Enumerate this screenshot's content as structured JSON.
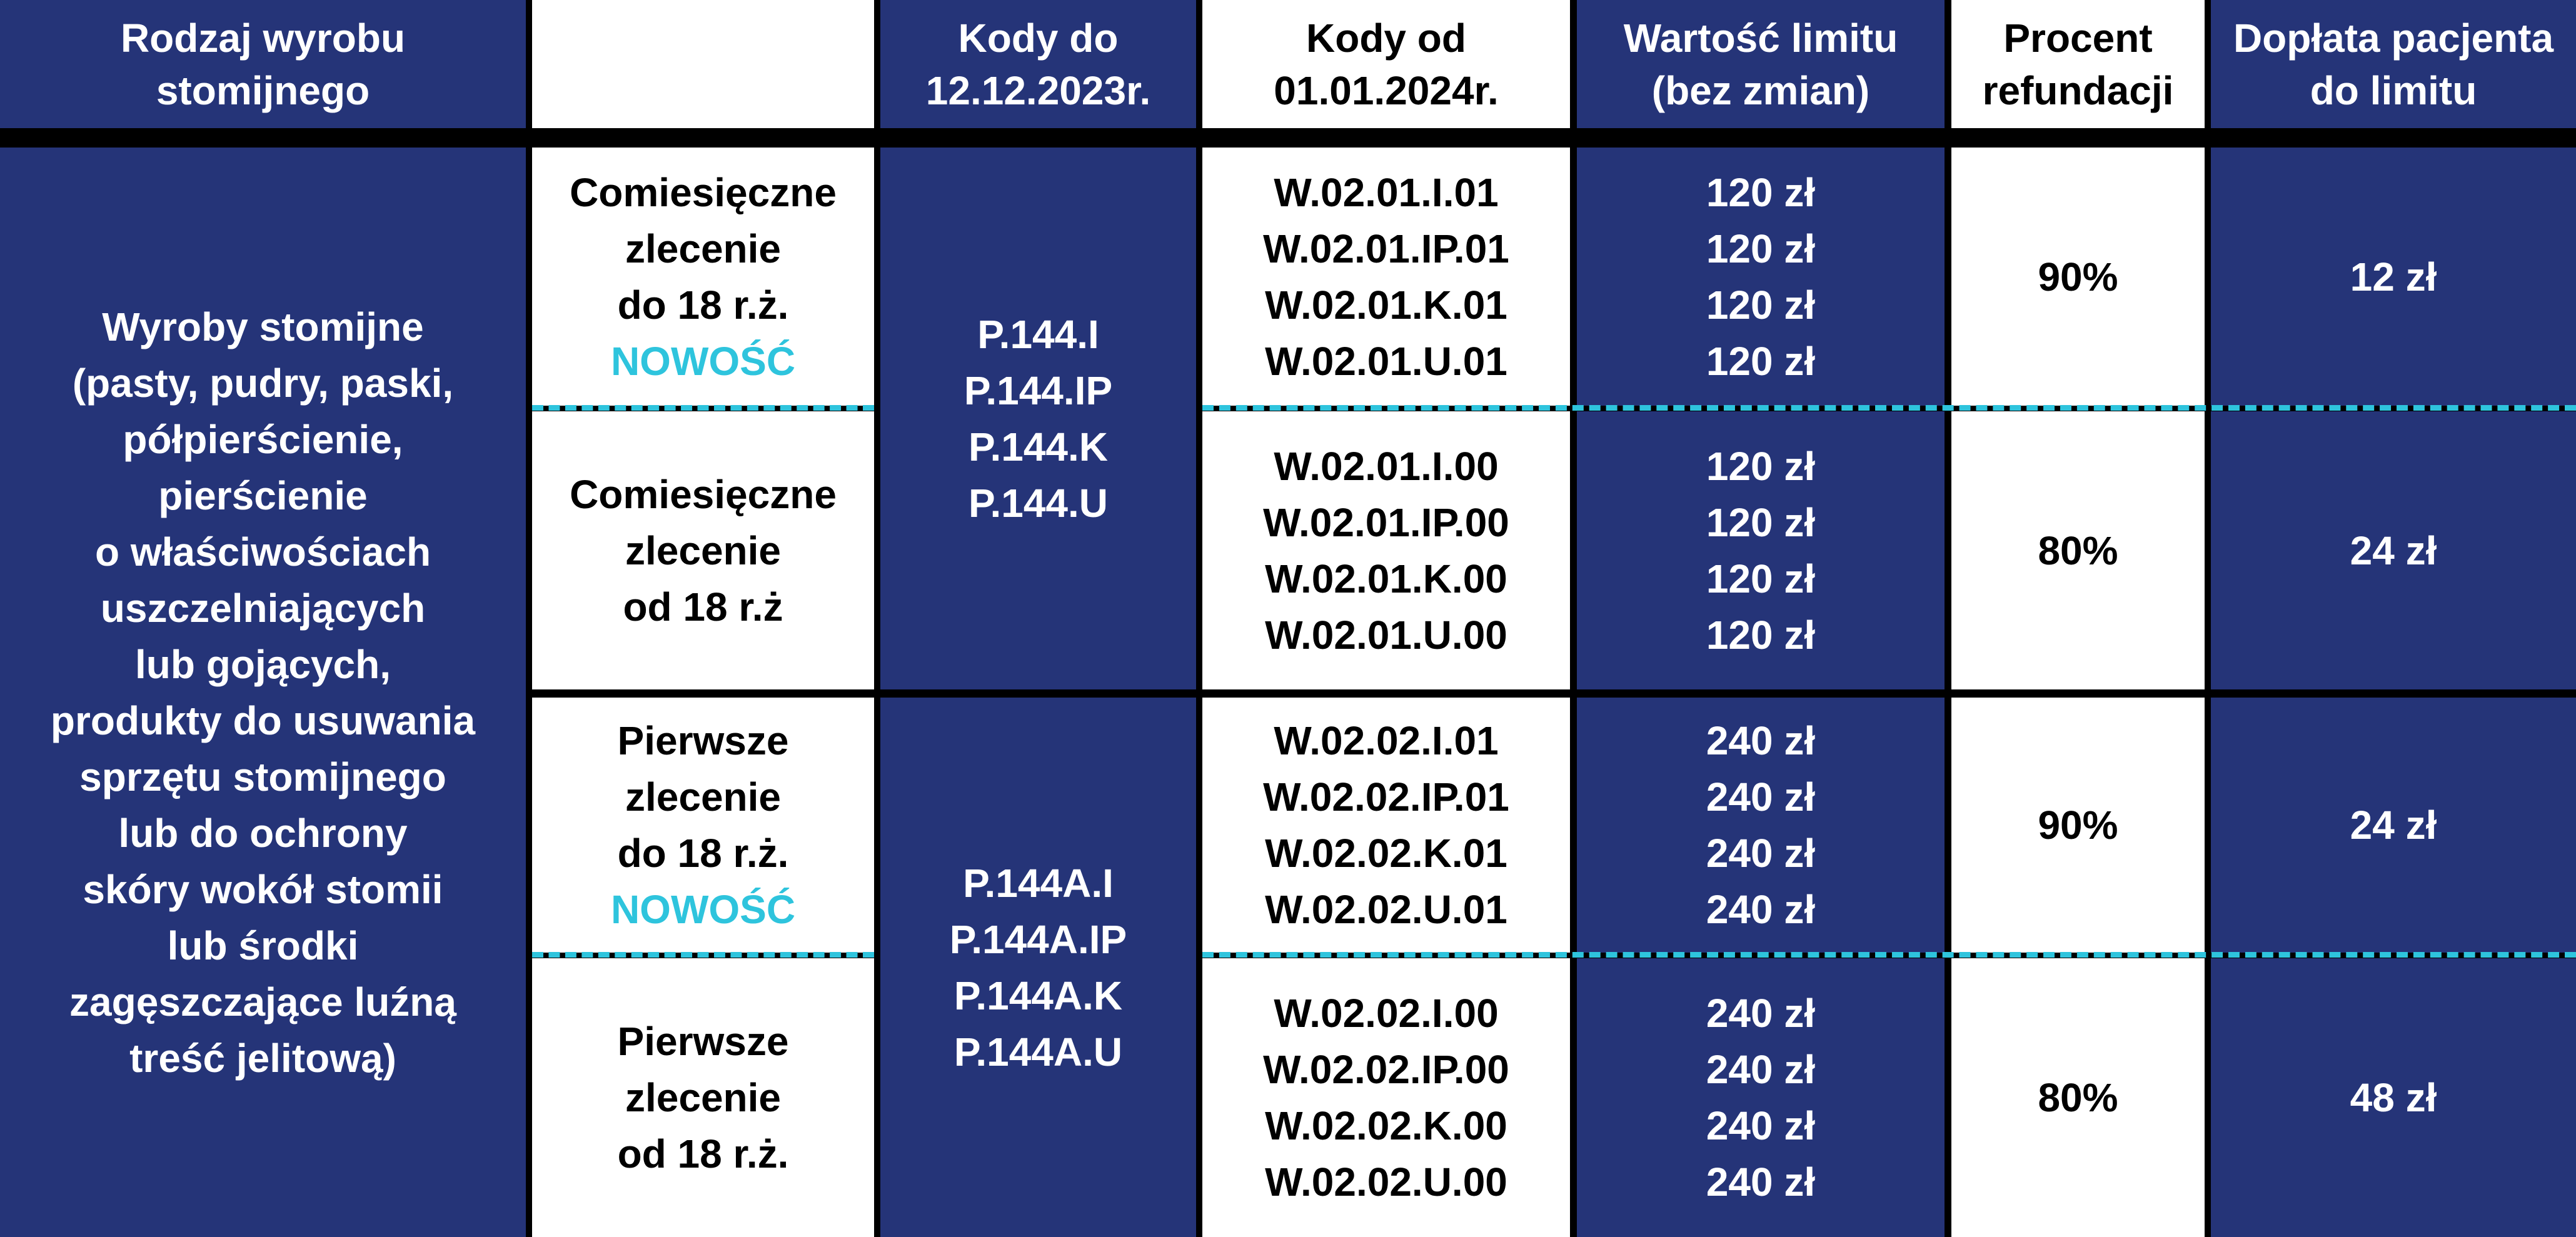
{
  "colors": {
    "blue": "#253478",
    "accent": "#2ec4dd",
    "white": "#ffffff",
    "black": "#000000"
  },
  "header": {
    "col1": [
      "Rodzaj wyrobu",
      "stomijnego"
    ],
    "col2": [],
    "col3": [
      "Kody do",
      "12.12.2023r."
    ],
    "col4": [
      "Kody od",
      "01.01.2024r."
    ],
    "col5": [
      "Wartość limitu",
      "(bez zmian)"
    ],
    "col6": [
      "Procent",
      "refundacji"
    ],
    "col7": [
      "Dopłata pacjenta",
      "do limitu"
    ]
  },
  "product": [
    "Wyroby stomijne",
    "(pasty, pudry, paski,",
    "półpierścienie,",
    "pierścienie",
    "o właściwościach",
    "uszczelniających",
    "lub gojących,",
    "produkty do usuwania",
    "sprzętu stomijnego",
    "lub do ochrony",
    "skóry wokół stomii",
    "lub środki",
    "zagęszczające luźną",
    "treść jelitową)"
  ],
  "groups": [
    {
      "old_codes": [
        "P.144.I",
        "P.144.IP",
        "P.144.K",
        "P.144.U"
      ],
      "rows": [
        {
          "order": [
            "Comiesięczne",
            "zlecenie",
            "do 18 r.ż."
          ],
          "badge": "NOWOŚĆ",
          "codes": [
            "W.02.01.I.01",
            "W.02.01.IP.01",
            "W.02.01.K.01",
            "W.02.01.U.01"
          ],
          "limits": [
            "120 zł",
            "120 zł",
            "120 zł",
            "120 zł"
          ],
          "percent": "90%",
          "copay": "12 zł"
        },
        {
          "order": [
            "Comiesięczne",
            "zlecenie",
            "od 18 r.ż"
          ],
          "badge": "",
          "codes": [
            "W.02.01.I.00",
            "W.02.01.IP.00",
            "W.02.01.K.00",
            "W.02.01.U.00"
          ],
          "limits": [
            "120 zł",
            "120 zł",
            "120 zł",
            "120 zł"
          ],
          "percent": "80%",
          "copay": "24 zł"
        }
      ]
    },
    {
      "old_codes": [
        "P.144A.I",
        "P.144A.IP",
        "P.144A.K",
        "P.144A.U"
      ],
      "rows": [
        {
          "order": [
            "Pierwsze",
            "zlecenie",
            "do 18 r.ż."
          ],
          "badge": "NOWOŚĆ",
          "codes": [
            "W.02.02.I.01",
            "W.02.02.IP.01",
            "W.02.02.K.01",
            "W.02.02.U.01"
          ],
          "limits": [
            "240 zł",
            "240 zł",
            "240 zł",
            "240 zł"
          ],
          "percent": "90%",
          "copay": "24 zł"
        },
        {
          "order": [
            "Pierwsze",
            "zlecenie",
            "od 18 r.ż."
          ],
          "badge": "",
          "codes": [
            "W.02.02.I.00",
            "W.02.02.IP.00",
            "W.02.02.K.00",
            "W.02.02.U.00"
          ],
          "limits": [
            "240 zł",
            "240 zł",
            "240 zł",
            "240 zł"
          ],
          "percent": "80%",
          "copay": "48 zł"
        }
      ]
    }
  ]
}
